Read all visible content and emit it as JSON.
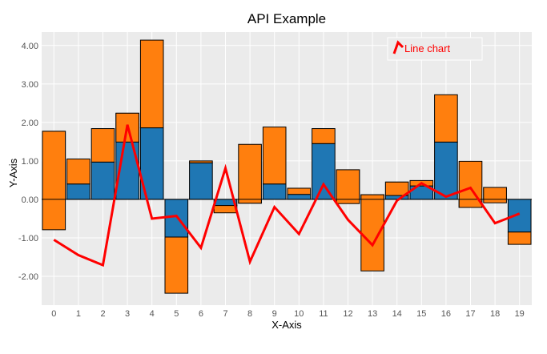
{
  "chart_data": {
    "type": "bar",
    "title": "API Example",
    "xlabel": "X-Axis",
    "ylabel": "Y-Axis",
    "categories": [
      "0",
      "1",
      "2",
      "3",
      "4",
      "5",
      "6",
      "7",
      "8",
      "9",
      "10",
      "11",
      "12",
      "13",
      "14",
      "15",
      "16",
      "17",
      "18",
      "19"
    ],
    "ylim": [
      -2.75,
      4.35
    ],
    "yticks": [
      "-2.00",
      "-1.00",
      "0.00",
      "1.00",
      "2.00",
      "3.00",
      "4.00"
    ],
    "ytick_values": [
      -2,
      -1,
      0,
      1,
      2,
      3,
      4
    ],
    "grid": true,
    "background": "#ebebeb",
    "series": [
      {
        "kind": "bar",
        "color": "#1f77b4",
        "values": [
          1.77,
          0.4,
          0.97,
          2.24,
          1.86,
          -0.98,
          0.95,
          -0.16,
          -0.1,
          0.4,
          0.13,
          1.45,
          0.77,
          0.12,
          0.45,
          0.35,
          1.49,
          -0.21,
          0.31,
          -0.85
        ]
      },
      {
        "kind": "bar-stacked",
        "color": "#ff7f0e",
        "values": [
          -2.56,
          0.65,
          0.87,
          -0.75,
          2.28,
          -1.46,
          0.05,
          -0.19,
          1.53,
          1.48,
          0.16,
          0.39,
          -0.88,
          -1.98,
          -0.35,
          0.14,
          1.23,
          1.2,
          -0.4,
          -0.32
        ]
      },
      {
        "kind": "line",
        "name": "Line chart",
        "color": "#ff0000",
        "values": [
          -1.05,
          -1.45,
          -1.71,
          1.94,
          -0.5,
          -0.43,
          -1.26,
          0.81,
          -1.62,
          -0.2,
          -0.9,
          0.39,
          -0.53,
          -1.19,
          -0.03,
          0.42,
          0.07,
          0.3,
          -0.62,
          -0.37
        ]
      }
    ],
    "legend": {
      "position": "top-right",
      "entries": [
        "Line chart"
      ]
    }
  }
}
